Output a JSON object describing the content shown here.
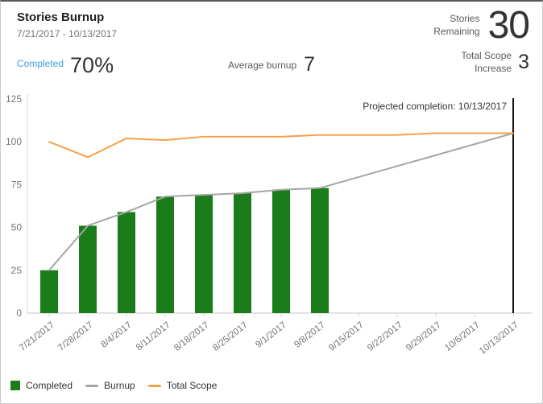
{
  "widget": {
    "title": "Stories Burnup",
    "date_range": "7/21/2017 - 10/13/2017"
  },
  "metrics": {
    "remaining_label_line1": "Stories",
    "remaining_label_line2": "Remaining",
    "remaining_value": "30",
    "completed_label": "Completed",
    "completed_value": "70%",
    "avg_label": "Average burnup",
    "avg_value": "7",
    "scope_label_line1": "Total Scope",
    "scope_label_line2": "Increase",
    "scope_value": "3"
  },
  "chart_data": {
    "type": "combo",
    "title": "Stories Burnup",
    "xlabel": "",
    "ylabel": "",
    "ylim": [
      0,
      125
    ],
    "y_ticks": [
      0,
      25,
      50,
      75,
      100,
      125
    ],
    "grid": false,
    "legend_position": "bottom-left",
    "categories": [
      "7/21/2017",
      "7/28/2017",
      "8/4/2017",
      "8/11/2017",
      "8/18/2017",
      "8/25/2017",
      "9/1/2017",
      "9/8/2017",
      "9/15/2017",
      "9/22/2017",
      "9/29/2017",
      "10/6/2017",
      "10/13/2017"
    ],
    "series": [
      {
        "name": "Completed",
        "type": "bar",
        "color": "#1a7d1a",
        "values": [
          25,
          51,
          59,
          68,
          69,
          70,
          72,
          73,
          null,
          null,
          null,
          null,
          null
        ]
      },
      {
        "name": "Burnup",
        "type": "line",
        "color": "#a5a5a5",
        "values": [
          25,
          51,
          59,
          68,
          69,
          70,
          72,
          73,
          null,
          null,
          null,
          null,
          null
        ],
        "projection": {
          "to_index": 12,
          "end_value": 105
        }
      },
      {
        "name": "Total Scope",
        "type": "line",
        "color": "#f7a04a",
        "values": [
          100,
          91,
          102,
          101,
          103,
          103,
          103,
          104,
          104,
          104,
          105,
          105,
          105
        ]
      }
    ],
    "annotation": {
      "text": "Projected completion: 10/13/2017",
      "category_index": 12,
      "line_color": "#111111"
    },
    "legend": [
      {
        "label": "Completed",
        "swatch": "square",
        "color": "#1a7d1a"
      },
      {
        "label": "Burnup",
        "swatch": "line",
        "color": "#a5a5a5"
      },
      {
        "label": "Total Scope",
        "swatch": "line",
        "color": "#f7a04a"
      }
    ],
    "axis_text_color": "#757575"
  }
}
